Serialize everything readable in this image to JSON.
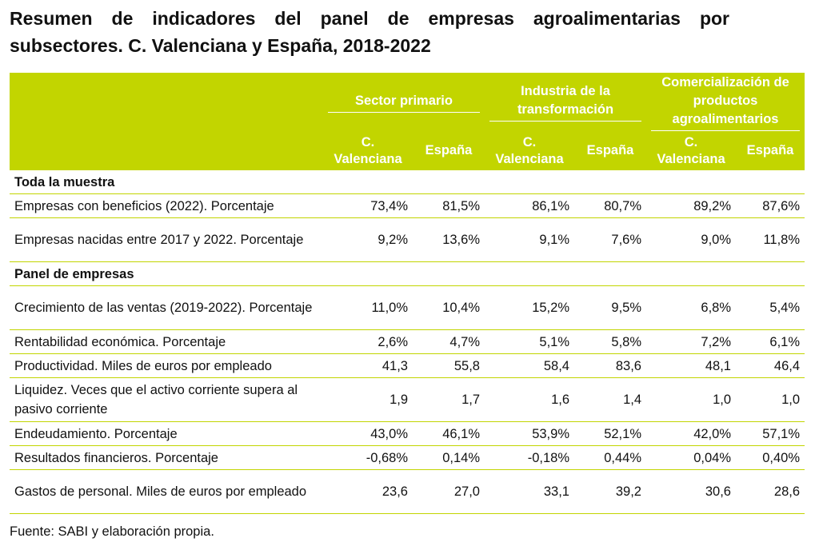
{
  "title": "Resumen de indicadores del panel de empresas agroalimentarias por subsectores. C. Valenciana y España, 2018-2022",
  "header": {
    "groups": [
      "Sector primario",
      "Industria de la transformación",
      "Comercialización de productos agroalimentarios"
    ],
    "sub": [
      "C. Valenciana",
      "España",
      "C. Valenciana",
      "España",
      "C. Valenciana",
      "España"
    ]
  },
  "rows": [
    {
      "label": "Toda la muestra",
      "section": true,
      "values": [
        "",
        "",
        "",
        "",
        "",
        ""
      ]
    },
    {
      "label": "Empresas con beneficios (2022). Porcentaje",
      "values": [
        "73,4%",
        "81,5%",
        "86,1%",
        "80,7%",
        "89,2%",
        "87,6%"
      ]
    },
    {
      "label": "Empresas nacidas entre 2017 y 2022. Porcentaje",
      "values": [
        "9,2%",
        "13,6%",
        "9,1%",
        "7,6%",
        "9,0%",
        "11,8%"
      ]
    },
    {
      "label": "Panel de empresas",
      "section": true,
      "values": [
        "",
        "",
        "",
        "",
        "",
        ""
      ]
    },
    {
      "label": "Crecimiento de las ventas (2019-2022). Porcentaje",
      "values": [
        "11,0%",
        "10,4%",
        "15,2%",
        "9,5%",
        "6,8%",
        "5,4%"
      ]
    },
    {
      "label": "Rentabilidad económica. Porcentaje",
      "values": [
        "2,6%",
        "4,7%",
        "5,1%",
        "5,8%",
        "7,2%",
        "6,1%"
      ]
    },
    {
      "label": "Productividad. Miles de euros por empleado",
      "values": [
        "41,3",
        "55,8",
        "58,4",
        "83,6",
        "48,1",
        "46,4"
      ]
    },
    {
      "label": "Liquidez. Veces que el activo corriente supera al pasivo corriente",
      "values": [
        "1,9",
        "1,7",
        "1,6",
        "1,4",
        "1,0",
        "1,0"
      ]
    },
    {
      "label": "Endeudamiento. Porcentaje",
      "values": [
        "43,0%",
        "46,1%",
        "53,9%",
        "52,1%",
        "42,0%",
        "57,1%"
      ]
    },
    {
      "label": "Resultados financieros. Porcentaje",
      "values": [
        "-0,68%",
        "0,14%",
        "-0,18%",
        "0,44%",
        "0,04%",
        "0,40%"
      ]
    },
    {
      "label": "Gastos de personal. Miles de euros por empleado",
      "values": [
        "23,6",
        "27,0",
        "33,1",
        "39,2",
        "30,6",
        "28,6"
      ]
    }
  ],
  "source": "Fuente: SABI y elaboración propia."
}
